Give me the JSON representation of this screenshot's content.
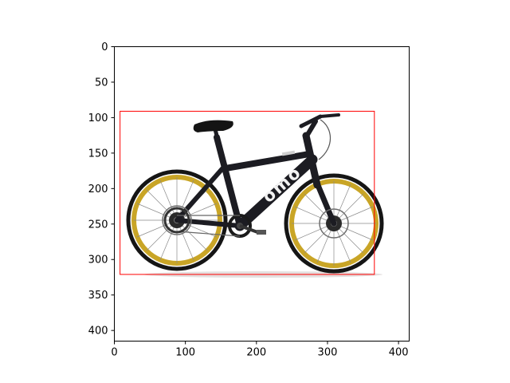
{
  "figure": {
    "x_ticks": [
      "0",
      "100",
      "200",
      "300",
      "400"
    ],
    "y_ticks": [
      "0",
      "50",
      "100",
      "150",
      "200",
      "250",
      "300",
      "350",
      "400"
    ],
    "xlim": [
      0,
      415
    ],
    "ylim": [
      415,
      0
    ],
    "bbox_color": "#ff0000"
  },
  "image": {
    "subject": "bicycle",
    "brand_text": "omo",
    "colors": {
      "frame": "#1c1c22",
      "rim": "#c9a526",
      "tire": "#151515",
      "logo": "#ffffff"
    }
  },
  "annotation": {
    "box_data_coords": {
      "x0": 8,
      "y0": 91,
      "x1": 366,
      "y1": 321
    }
  }
}
